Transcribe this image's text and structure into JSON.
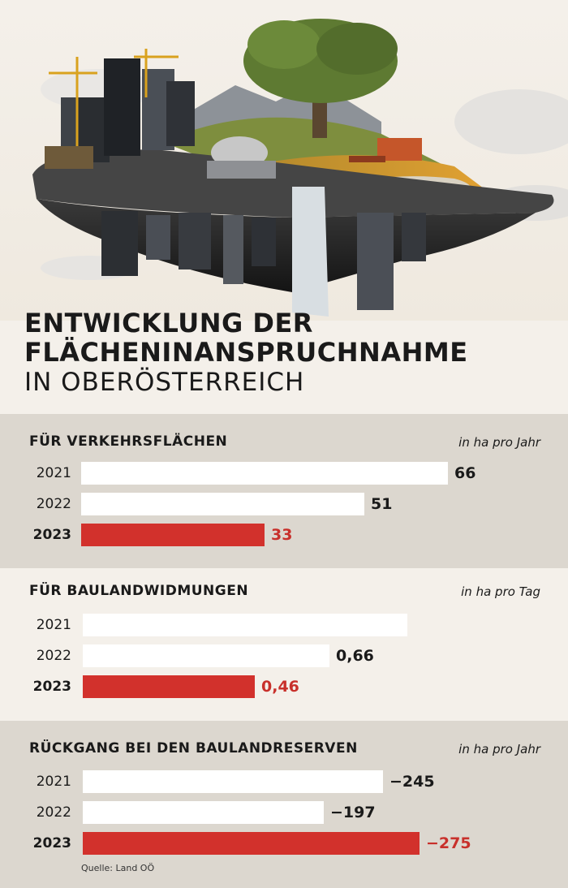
{
  "headline": {
    "line1": "ENTWICKLUNG DER",
    "line2": "FLÄCHENINANSPRUCHNAHME",
    "line3": "IN OBERÖSTERREICH"
  },
  "chart_data": [
    {
      "type": "bar",
      "title": "FÜR VERKEHRSFLÄCHEN",
      "unit": "in ha pro Jahr",
      "categories": [
        "2021",
        "2022",
        "2023"
      ],
      "values": [
        66,
        51,
        33
      ],
      "value_labels": [
        "66",
        "51",
        "33"
      ],
      "highlight": "2023"
    },
    {
      "type": "bar",
      "title": "FÜR BAULANDWIDMUNGEN",
      "unit": "in ha pro Tag",
      "categories": [
        "2021",
        "2022",
        "2023"
      ],
      "values": [
        0.87,
        0.66,
        0.46
      ],
      "value_labels": [
        "",
        "0,66",
        "0,46"
      ],
      "highlight": "2023"
    },
    {
      "type": "bar",
      "title": "RÜCKGANG BEI DEN BAULANDRESERVEN",
      "unit": "in ha pro Jahr",
      "categories": [
        "2021",
        "2022",
        "2023"
      ],
      "values": [
        -245,
        -197,
        -275
      ],
      "value_labels": [
        "−245",
        "−197",
        "−275"
      ],
      "highlight": "2023"
    }
  ],
  "source": "Quelle: Land OÖ",
  "colors": {
    "highlight": "#d2312c",
    "bar": "#ffffff",
    "panel_grey": "#dcd7cf",
    "background": "#f4f0ea"
  }
}
